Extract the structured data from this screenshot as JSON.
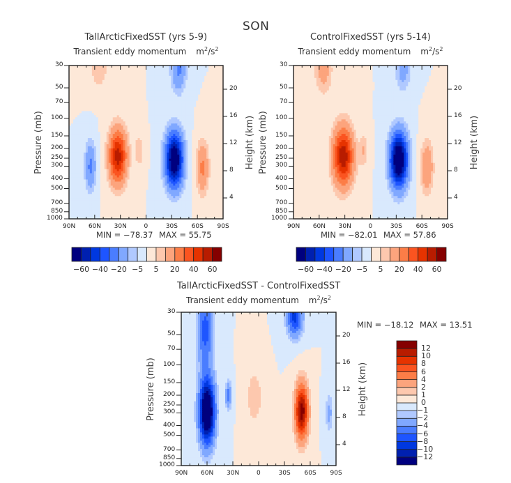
{
  "figure": {
    "suptitle": "SON"
  },
  "chart_data": [
    {
      "type": "heatmap",
      "subtype": "filled-contour",
      "id": "tallarctic",
      "title": "TallArcticFixedSST (yrs 5-9)",
      "subtitle": "Transient eddy momentum",
      "units": "m²/s²",
      "xlabel": "",
      "ylabel": "Pressure (mb)",
      "ylabel_right": "Height (km)",
      "x_ticks": [
        "90N",
        "60N",
        "30N",
        "0",
        "30S",
        "60S",
        "90S"
      ],
      "x_range": [
        90,
        -90
      ],
      "y_ticks": [
        30,
        50,
        70,
        100,
        150,
        200,
        250,
        300,
        400,
        500,
        700,
        850,
        1000
      ],
      "y_range": [
        1000,
        30
      ],
      "y_scale": "log",
      "y_right_ticks": [
        4,
        8,
        12,
        16,
        20
      ],
      "min_label": "MIN = -78.37",
      "max_label": "MAX = 55.75",
      "min": -78.37,
      "max": 55.75,
      "colorbar": {
        "orientation": "horizontal",
        "levels": [
          -60,
          -50,
          -40,
          -30,
          -20,
          -10,
          -5,
          0,
          5,
          10,
          20,
          30,
          40,
          50,
          60
        ],
        "labels": [
          "-60",
          "-40",
          "-20",
          "-5",
          "5",
          "20",
          "40",
          "60"
        ]
      },
      "features": [
        {
          "lat": 33,
          "p": 240,
          "value": 55,
          "sigma_lat": 7,
          "sigma_z": 0.42
        },
        {
          "lat": -33,
          "p": 260,
          "value": -78,
          "sigma_lat": 7,
          "sigma_z": 0.42
        },
        {
          "lat": 65,
          "p": 300,
          "value": -22,
          "sigma_lat": 4.5,
          "sigma_z": 0.38
        },
        {
          "lat": -66,
          "p": 310,
          "value": 22,
          "sigma_lat": 5,
          "sigma_z": 0.4
        },
        {
          "lat": 8,
          "p": 210,
          "value": 10,
          "sigma_lat": 3.5,
          "sigma_z": 0.25
        },
        {
          "lat": -38,
          "p": 33,
          "value": -22,
          "sigma_lat": 6,
          "sigma_z": 0.35
        },
        {
          "lat": 55,
          "p": 33,
          "value": 8,
          "sigma_lat": 8,
          "sigma_z": 0.35
        }
      ]
    },
    {
      "type": "heatmap",
      "subtype": "filled-contour",
      "id": "control",
      "title": "ControlFixedSST (yrs 5-14)",
      "subtitle": "Transient eddy momentum",
      "units": "m²/s²",
      "xlabel": "",
      "ylabel": "Pressure (mb)",
      "ylabel_right": "Height (km)",
      "x_ticks": [
        "90N",
        "60N",
        "30N",
        "0",
        "30S",
        "60S",
        "90S"
      ],
      "x_range": [
        90,
        -90
      ],
      "y_ticks": [
        30,
        50,
        70,
        100,
        150,
        200,
        250,
        300,
        400,
        500,
        700,
        850,
        1000
      ],
      "y_range": [
        1000,
        30
      ],
      "y_scale": "log",
      "y_right_ticks": [
        4,
        8,
        12,
        16,
        20
      ],
      "min_label": "MIN = -82.01",
      "max_label": "MAX = 57.86",
      "min": -82.01,
      "max": 57.86,
      "colorbar": {
        "orientation": "horizontal",
        "levels": [
          -60,
          -50,
          -40,
          -30,
          -20,
          -10,
          -5,
          0,
          5,
          10,
          20,
          30,
          40,
          50,
          60
        ],
        "labels": [
          "-60",
          "-40",
          "-20",
          "-5",
          "5",
          "20",
          "40",
          "60"
        ]
      },
      "features": [
        {
          "lat": 32,
          "p": 240,
          "value": 58,
          "sigma_lat": 8,
          "sigma_z": 0.45
        },
        {
          "lat": -33,
          "p": 260,
          "value": -82,
          "sigma_lat": 7,
          "sigma_z": 0.42
        },
        {
          "lat": -66,
          "p": 310,
          "value": 20,
          "sigma_lat": 5,
          "sigma_z": 0.4
        },
        {
          "lat": 8,
          "p": 210,
          "value": 10,
          "sigma_lat": 3.5,
          "sigma_z": 0.25
        },
        {
          "lat": -38,
          "p": 33,
          "value": -14,
          "sigma_lat": 6,
          "sigma_z": 0.33
        },
        {
          "lat": 55,
          "p": 33,
          "value": 14,
          "sigma_lat": 7,
          "sigma_z": 0.38
        }
      ]
    },
    {
      "type": "heatmap",
      "subtype": "filled-contour",
      "id": "difference",
      "title": "TallArcticFixedSST - ControlFixedSST",
      "subtitle": "Transient eddy momentum",
      "units": "m²/s²",
      "xlabel": "",
      "ylabel": "Pressure (mb)",
      "ylabel_right": "Height (km)",
      "x_ticks": [
        "90N",
        "60N",
        "30N",
        "0",
        "30S",
        "60S",
        "90S"
      ],
      "x_range": [
        90,
        -90
      ],
      "y_ticks": [
        30,
        50,
        70,
        100,
        150,
        200,
        250,
        300,
        400,
        500,
        700,
        850,
        1000
      ],
      "y_range": [
        1000,
        30
      ],
      "y_scale": "log",
      "y_right_ticks": [
        4,
        8,
        12,
        16,
        20
      ],
      "min_label": "MIN = -18.12",
      "max_label": "MAX = 13.51",
      "min": -18.12,
      "max": 13.51,
      "colorbar": {
        "orientation": "vertical",
        "levels": [
          -12,
          -10,
          -8,
          -6,
          -4,
          -2,
          -1,
          0,
          1,
          2,
          4,
          6,
          8,
          10,
          12
        ],
        "labels": [
          "-12",
          "-10",
          "-8",
          "-6",
          "-4",
          "-2",
          "-1",
          "0",
          "1",
          "2",
          "4",
          "6",
          "8",
          "10",
          "12"
        ]
      },
      "features": [
        {
          "lat": 60,
          "p": 290,
          "value": -18,
          "sigma_lat": 6,
          "sigma_z": 0.5
        },
        {
          "lat": 62,
          "p": 45,
          "value": -7,
          "sigma_lat": 6,
          "sigma_z": 0.6
        },
        {
          "lat": -50,
          "p": 290,
          "value": 13.5,
          "sigma_lat": 5,
          "sigma_z": 0.42
        },
        {
          "lat": -42,
          "p": 33,
          "value": -9,
          "sigma_lat": 6,
          "sigma_z": 0.3
        },
        {
          "lat": 35,
          "p": 200,
          "value": -5,
          "sigma_lat": 2.5,
          "sigma_z": 0.2
        },
        {
          "lat": 5,
          "p": 210,
          "value": 2,
          "sigma_lat": 6,
          "sigma_z": 0.4
        },
        {
          "lat": -82,
          "p": 300,
          "value": -2.5,
          "sigma_lat": 3,
          "sigma_z": 0.3
        }
      ]
    }
  ],
  "colormap": [
    "#00007f",
    "#0020b0",
    "#0038e0",
    "#1e55ff",
    "#4a7dff",
    "#80a8ff",
    "#b0c9ff",
    "#d9e9fd",
    "#fde8d8",
    "#fdc8ae",
    "#fca47d",
    "#fc7d47",
    "#fb5420",
    "#e63300",
    "#b81c00",
    "#850000"
  ]
}
